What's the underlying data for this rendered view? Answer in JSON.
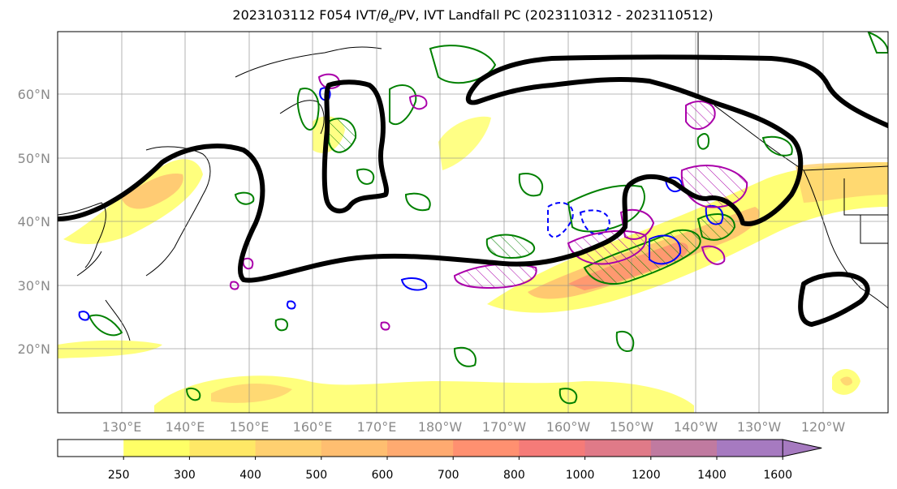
{
  "title_prefix": "2023103112 F054 IVT/",
  "title_theta": "θ",
  "title_theta_sub": "e",
  "title_suffix": "/PV, IVT Landfall PC (2023110312 - 2023110512)",
  "lat_labels": [
    "60°N",
    "50°N",
    "40°N",
    "30°N",
    "20°N"
  ],
  "lon_labels": [
    "130°E",
    "140°E",
    "150°E",
    "160°E",
    "170°E",
    "180°W",
    "170°W",
    "160°W",
    "150°W",
    "140°W",
    "130°W",
    "120°W"
  ],
  "colorbar": {
    "ticks": [
      "250",
      "300",
      "400",
      "500",
      "600",
      "700",
      "800",
      "1000",
      "1200",
      "1400",
      "1600"
    ],
    "colors": [
      "#ffffff",
      "#ffff66",
      "#ffe866",
      "#ffd070",
      "#ffbe70",
      "#ffaa70",
      "#ff9070",
      "#f57b78",
      "#e07a88",
      "#c07aa0",
      "#a67ac0"
    ]
  },
  "colors": {
    "ivt_fill_low": "#ffff66",
    "ivt_fill_high": "#ff9070",
    "landfall_contour": "#000000",
    "theta_e_contour": "#008000",
    "pv_contour": "#aa00aa",
    "neg_contour": "#0000ff"
  }
}
